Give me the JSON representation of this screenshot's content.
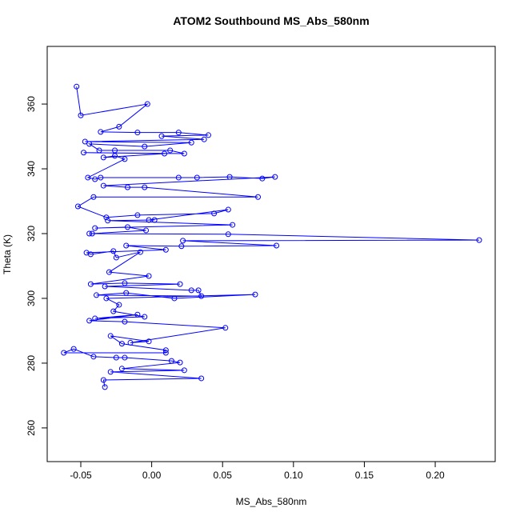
{
  "chart_data": {
    "type": "line",
    "title": "ATOM2 Southbound MS_Abs_580nm",
    "x_label": "MS_Abs_580nm",
    "y_label": "Theta (K)",
    "color": "#0000ff",
    "x": [
      -0.053,
      -0.05,
      -0.003,
      -0.023,
      -0.036,
      -0.01,
      0.019,
      0.04,
      0.007,
      0.037,
      -0.047,
      0.028,
      -0.005,
      -0.044,
      -0.037,
      -0.026,
      0.013,
      0.023,
      -0.048,
      0.009,
      -0.034,
      -0.026,
      -0.019,
      -0.045,
      -0.04,
      -0.036,
      0.019,
      0.032,
      0.055,
      0.078,
      0.087,
      -0.034,
      -0.017,
      -0.005,
      0.075,
      -0.041,
      -0.052,
      -0.032,
      -0.01,
      0.044,
      0.054,
      -0.002,
      0.002,
      -0.031,
      0.057,
      -0.04,
      -0.017,
      -0.004,
      -0.042,
      -0.044,
      0.054,
      0.231,
      0.022,
      0.088,
      0.021,
      -0.018,
      0.01,
      -0.046,
      -0.043,
      -0.027,
      -0.025,
      -0.008,
      -0.03,
      -0.002,
      -0.043,
      -0.019,
      0.02,
      -0.033,
      0.028,
      0.033,
      0.035,
      -0.039,
      -0.018,
      0.016,
      0.073,
      -0.032,
      -0.023,
      -0.027,
      -0.005,
      -0.04,
      -0.01,
      -0.044,
      -0.019,
      0.052,
      -0.015,
      -0.002,
      -0.029,
      -0.021,
      0.01,
      0.01,
      -0.062,
      -0.055,
      -0.041,
      -0.025,
      -0.019,
      0.014,
      0.02,
      -0.021,
      0.023,
      -0.029,
      0.035,
      -0.034,
      -0.033
    ],
    "values": [
      365.4,
      356.5,
      360,
      353,
      351.4,
      351.2,
      351.2,
      350.4,
      350.1,
      349.1,
      348.4,
      348.1,
      346.9,
      347.7,
      345.7,
      345.7,
      345.7,
      344.7,
      345,
      344.7,
      343.5,
      344,
      343,
      337.3,
      336.8,
      337.3,
      337.3,
      337.3,
      337.5,
      337,
      337.5,
      334.8,
      334.3,
      334.3,
      331.3,
      331.3,
      328.4,
      325,
      325.7,
      326.2,
      327.4,
      324.2,
      324.2,
      324,
      322.7,
      321.7,
      322,
      321,
      320,
      320,
      319.8,
      318,
      317.8,
      316.3,
      316.1,
      316.3,
      315,
      314.1,
      313.6,
      314.6,
      312.6,
      314.3,
      308.1,
      306.9,
      304.4,
      304.7,
      304.4,
      303.7,
      302.5,
      302.5,
      300.7,
      301,
      301.7,
      300,
      301.2,
      300,
      298,
      296,
      294.3,
      293.8,
      295,
      293.1,
      292.8,
      290.9,
      286.3,
      286.7,
      288.4,
      286,
      284,
      283.2,
      283.2,
      284.4,
      282,
      281.7,
      281.7,
      280.7,
      280.2,
      278.3,
      277.8,
      277.3,
      275.3,
      274.8,
      272.6
    ],
    "xlim": [
      -0.0737,
      0.2423
    ],
    "ylim": [
      249.6,
      377.8
    ],
    "xticks": [
      -0.05,
      {
        "value": 0,
        "label": "0.00"
      },
      0.05,
      {
        "value": 0.1,
        "label": "0.10"
      },
      0.15,
      {
        "value": 0.2,
        "label": "0.20"
      }
    ],
    "yticks": [
      260,
      280,
      300,
      320,
      340,
      360
    ]
  }
}
